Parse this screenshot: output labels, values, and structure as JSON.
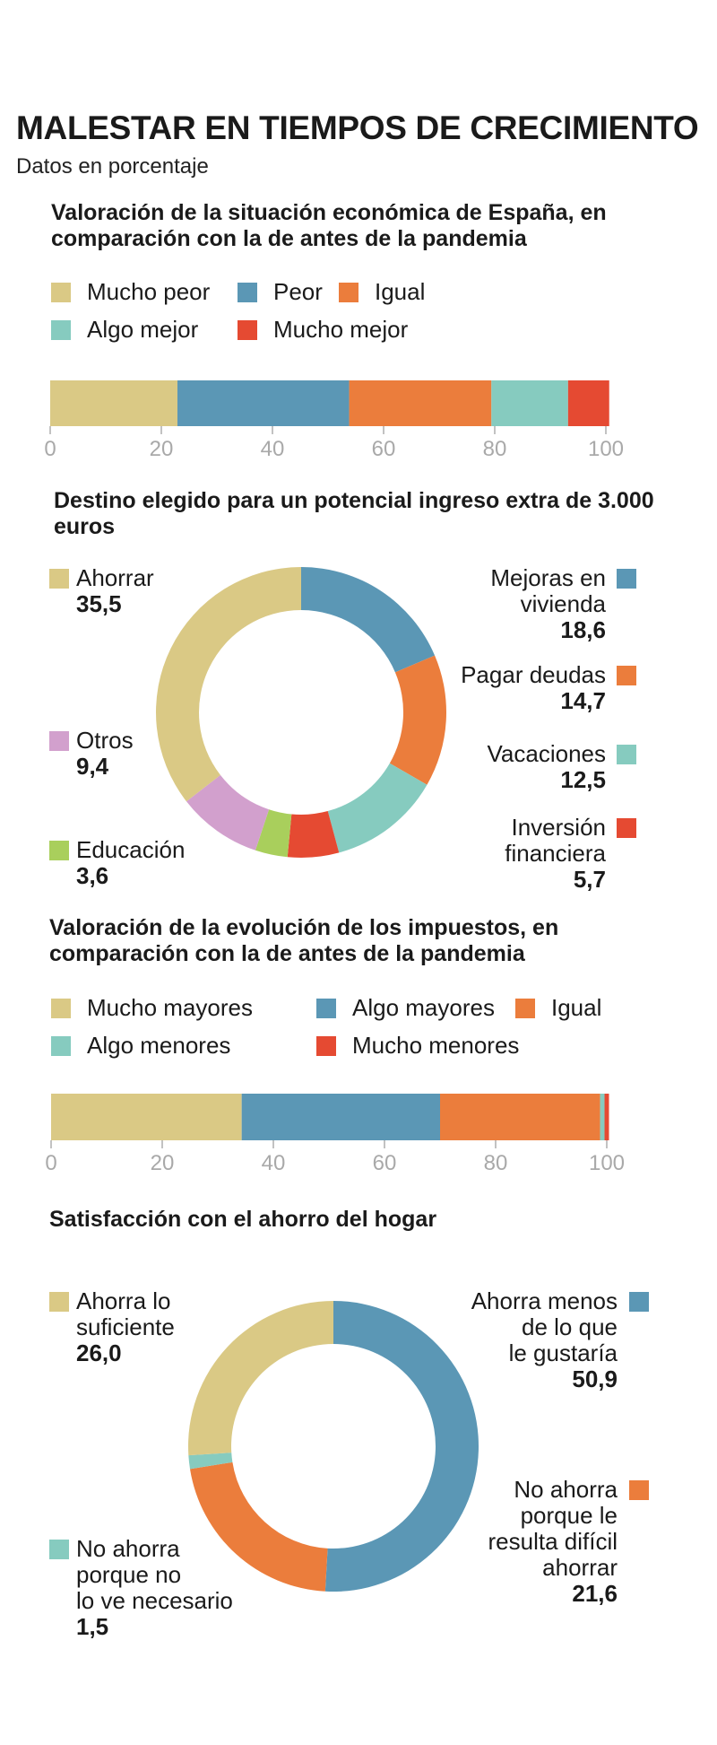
{
  "title": "MALESTAR EN TIEMPOS DE CRECIMIENTO",
  "subtitle": "Datos en porcentaje",
  "chart_data": [
    {
      "type": "bar",
      "title": "Valoración de la situación económica de España, en comparación con la de antes de la pandemia",
      "series": [
        {
          "name": "Mucho peor",
          "value": 22.9,
          "color": "#dac985"
        },
        {
          "name": "Peor",
          "value": 30.9,
          "color": "#5b97b5"
        },
        {
          "name": "Igual",
          "value": 25.6,
          "color": "#eb7d3c"
        },
        {
          "name": "Algo mejor",
          "value": 13.8,
          "color": "#86cbbf"
        },
        {
          "name": "Mucho mejor",
          "value": 7.4,
          "color": "#e54a32"
        }
      ],
      "ticks": [
        0,
        20,
        40,
        60,
        80,
        100
      ],
      "xlim": [
        0,
        100
      ],
      "stacked": true,
      "orientation": "horizontal"
    },
    {
      "type": "pie",
      "title": "Destino elegido para un potencial ingreso extra de 3.000 euros",
      "slices": [
        {
          "name": "Mejoras en vivienda",
          "value": 18.6,
          "label": "18,6",
          "color": "#5b97b5"
        },
        {
          "name": "Pagar deudas",
          "value": 14.7,
          "label": "14,7",
          "color": "#eb7d3c"
        },
        {
          "name": "Vacaciones",
          "value": 12.5,
          "label": "12,5",
          "color": "#86cbbf"
        },
        {
          "name": "Inversión financiera",
          "value": 5.7,
          "label": "5,7",
          "color": "#e54a32"
        },
        {
          "name": "Educación",
          "value": 3.6,
          "label": "3,6",
          "color": "#a9cf5c"
        },
        {
          "name": "Otros",
          "value": 9.4,
          "label": "9,4",
          "color": "#d2a0cd"
        },
        {
          "name": "Ahorrar",
          "value": 35.5,
          "label": "35,5",
          "color": "#dac985"
        }
      ],
      "labels_layout": {
        "right": [
          {
            "lines": [
              "Mejoras en",
              "vivienda"
            ],
            "value": "18,6",
            "color": "#5b97b5"
          },
          {
            "lines": [
              "Pagar deudas"
            ],
            "value": "14,7",
            "color": "#eb7d3c"
          },
          {
            "lines": [
              "Vacaciones"
            ],
            "value": "12,5",
            "color": "#86cbbf"
          },
          {
            "lines": [
              "Inversión",
              "financiera"
            ],
            "value": "5,7",
            "color": "#e54a32"
          }
        ],
        "left": [
          {
            "lines": [
              "Ahorrar"
            ],
            "value": "35,5",
            "color": "#dac985"
          },
          {
            "lines": [
              "Otros"
            ],
            "value": "9,4",
            "color": "#d2a0cd"
          },
          {
            "lines": [
              "Educación"
            ],
            "value": "3,6",
            "color": "#a9cf5c"
          }
        ]
      }
    },
    {
      "type": "bar",
      "title": "Valoración de la evolución de los impuestos, en comparación con la de antes de la pandemia",
      "series": [
        {
          "name": "Mucho mayores",
          "value": 34.3,
          "color": "#dac985"
        },
        {
          "name": "Algo mayores",
          "value": 35.7,
          "color": "#5b97b5"
        },
        {
          "name": "Igual",
          "value": 28.8,
          "color": "#eb7d3c"
        },
        {
          "name": "Algo menores",
          "value": 0.8,
          "color": "#86cbbf"
        },
        {
          "name": "Mucho menores",
          "value": 0.8,
          "color": "#e54a32"
        }
      ],
      "ticks": [
        0,
        20,
        40,
        60,
        80,
        100
      ],
      "xlim": [
        0,
        100
      ],
      "stacked": true,
      "orientation": "horizontal"
    },
    {
      "type": "pie",
      "title": "Satisfacción con el ahorro del hogar",
      "slices": [
        {
          "name": "Ahorra menos de lo que le gustaría",
          "value": 50.9,
          "label": "50,9",
          "color": "#5b97b5"
        },
        {
          "name": "No ahorra porque le resulta difícil ahorrar",
          "value": 21.6,
          "label": "21,6",
          "color": "#eb7d3c"
        },
        {
          "name": "No ahorra porque no lo ve necesario",
          "value": 1.5,
          "label": "1,5",
          "color": "#86cbbf"
        },
        {
          "name": "Ahorra lo suficiente",
          "value": 26.0,
          "label": "26,0",
          "color": "#dac985"
        }
      ],
      "labels_layout": {
        "right": [
          {
            "lines": [
              "Ahorra menos",
              "de lo que",
              "le gustaría"
            ],
            "value": "50,9",
            "color": "#5b97b5"
          },
          {
            "lines": [
              "No ahorra",
              "porque le",
              "resulta difícil",
              "ahorrar"
            ],
            "value": "21,6",
            "color": "#eb7d3c"
          }
        ],
        "left": [
          {
            "lines": [
              "Ahorra lo",
              "suficiente"
            ],
            "value": "26,0",
            "color": "#dac985"
          },
          {
            "lines": [
              "No ahorra",
              "porque no",
              "lo ve necesario"
            ],
            "value": "1,5",
            "color": "#86cbbf"
          }
        ]
      }
    }
  ]
}
